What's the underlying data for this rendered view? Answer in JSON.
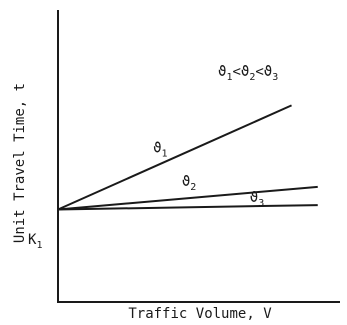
{
  "chart_data": {
    "type": "line",
    "xlabel": "Traffic Volume, V",
    "ylabel": "Unit Travel Time, t",
    "annotation": "ϑ1<ϑ2<ϑ3",
    "intercept_label": "K1",
    "xlim": [
      0,
      10
    ],
    "ylim": [
      0,
      10
    ],
    "grid": false,
    "series": [
      {
        "name": "ϑ1",
        "x": [
          0,
          8.65
        ],
        "y": [
          3.6,
          7.65
        ]
      },
      {
        "name": "ϑ2",
        "x": [
          0,
          9.62
        ],
        "y": [
          3.6,
          4.48
        ]
      },
      {
        "name": "ϑ3",
        "x": [
          0,
          9.62
        ],
        "y": [
          3.6,
          3.77
        ]
      }
    ]
  }
}
